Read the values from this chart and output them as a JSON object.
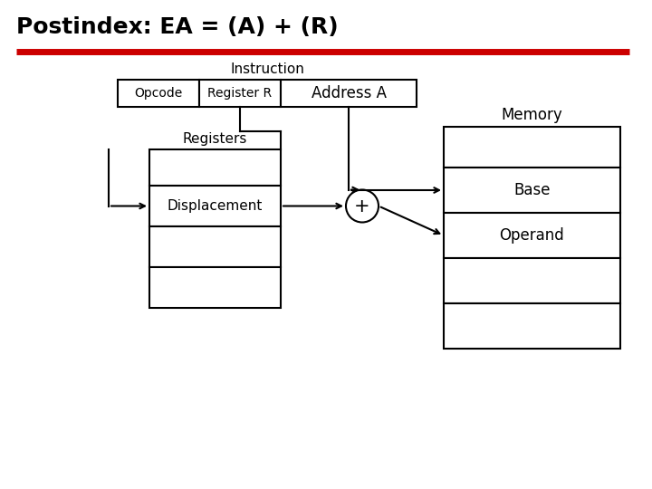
{
  "title": "Postindex: EA = (A) + (R)",
  "title_color": "#000000",
  "title_fontsize": 18,
  "title_bold": true,
  "red_line_color": "#cc0000",
  "background_color": "#ffffff",
  "text_color": "#000000",
  "instruction_label": "Instruction",
  "opcode_label": "Opcode",
  "register_label": "Register R",
  "address_label": "Address A",
  "registers_label": "Registers",
  "displacement_label": "Displacement",
  "memory_label": "Memory",
  "base_label": "Base",
  "operand_label": "Operand",
  "plus_symbol": "+"
}
